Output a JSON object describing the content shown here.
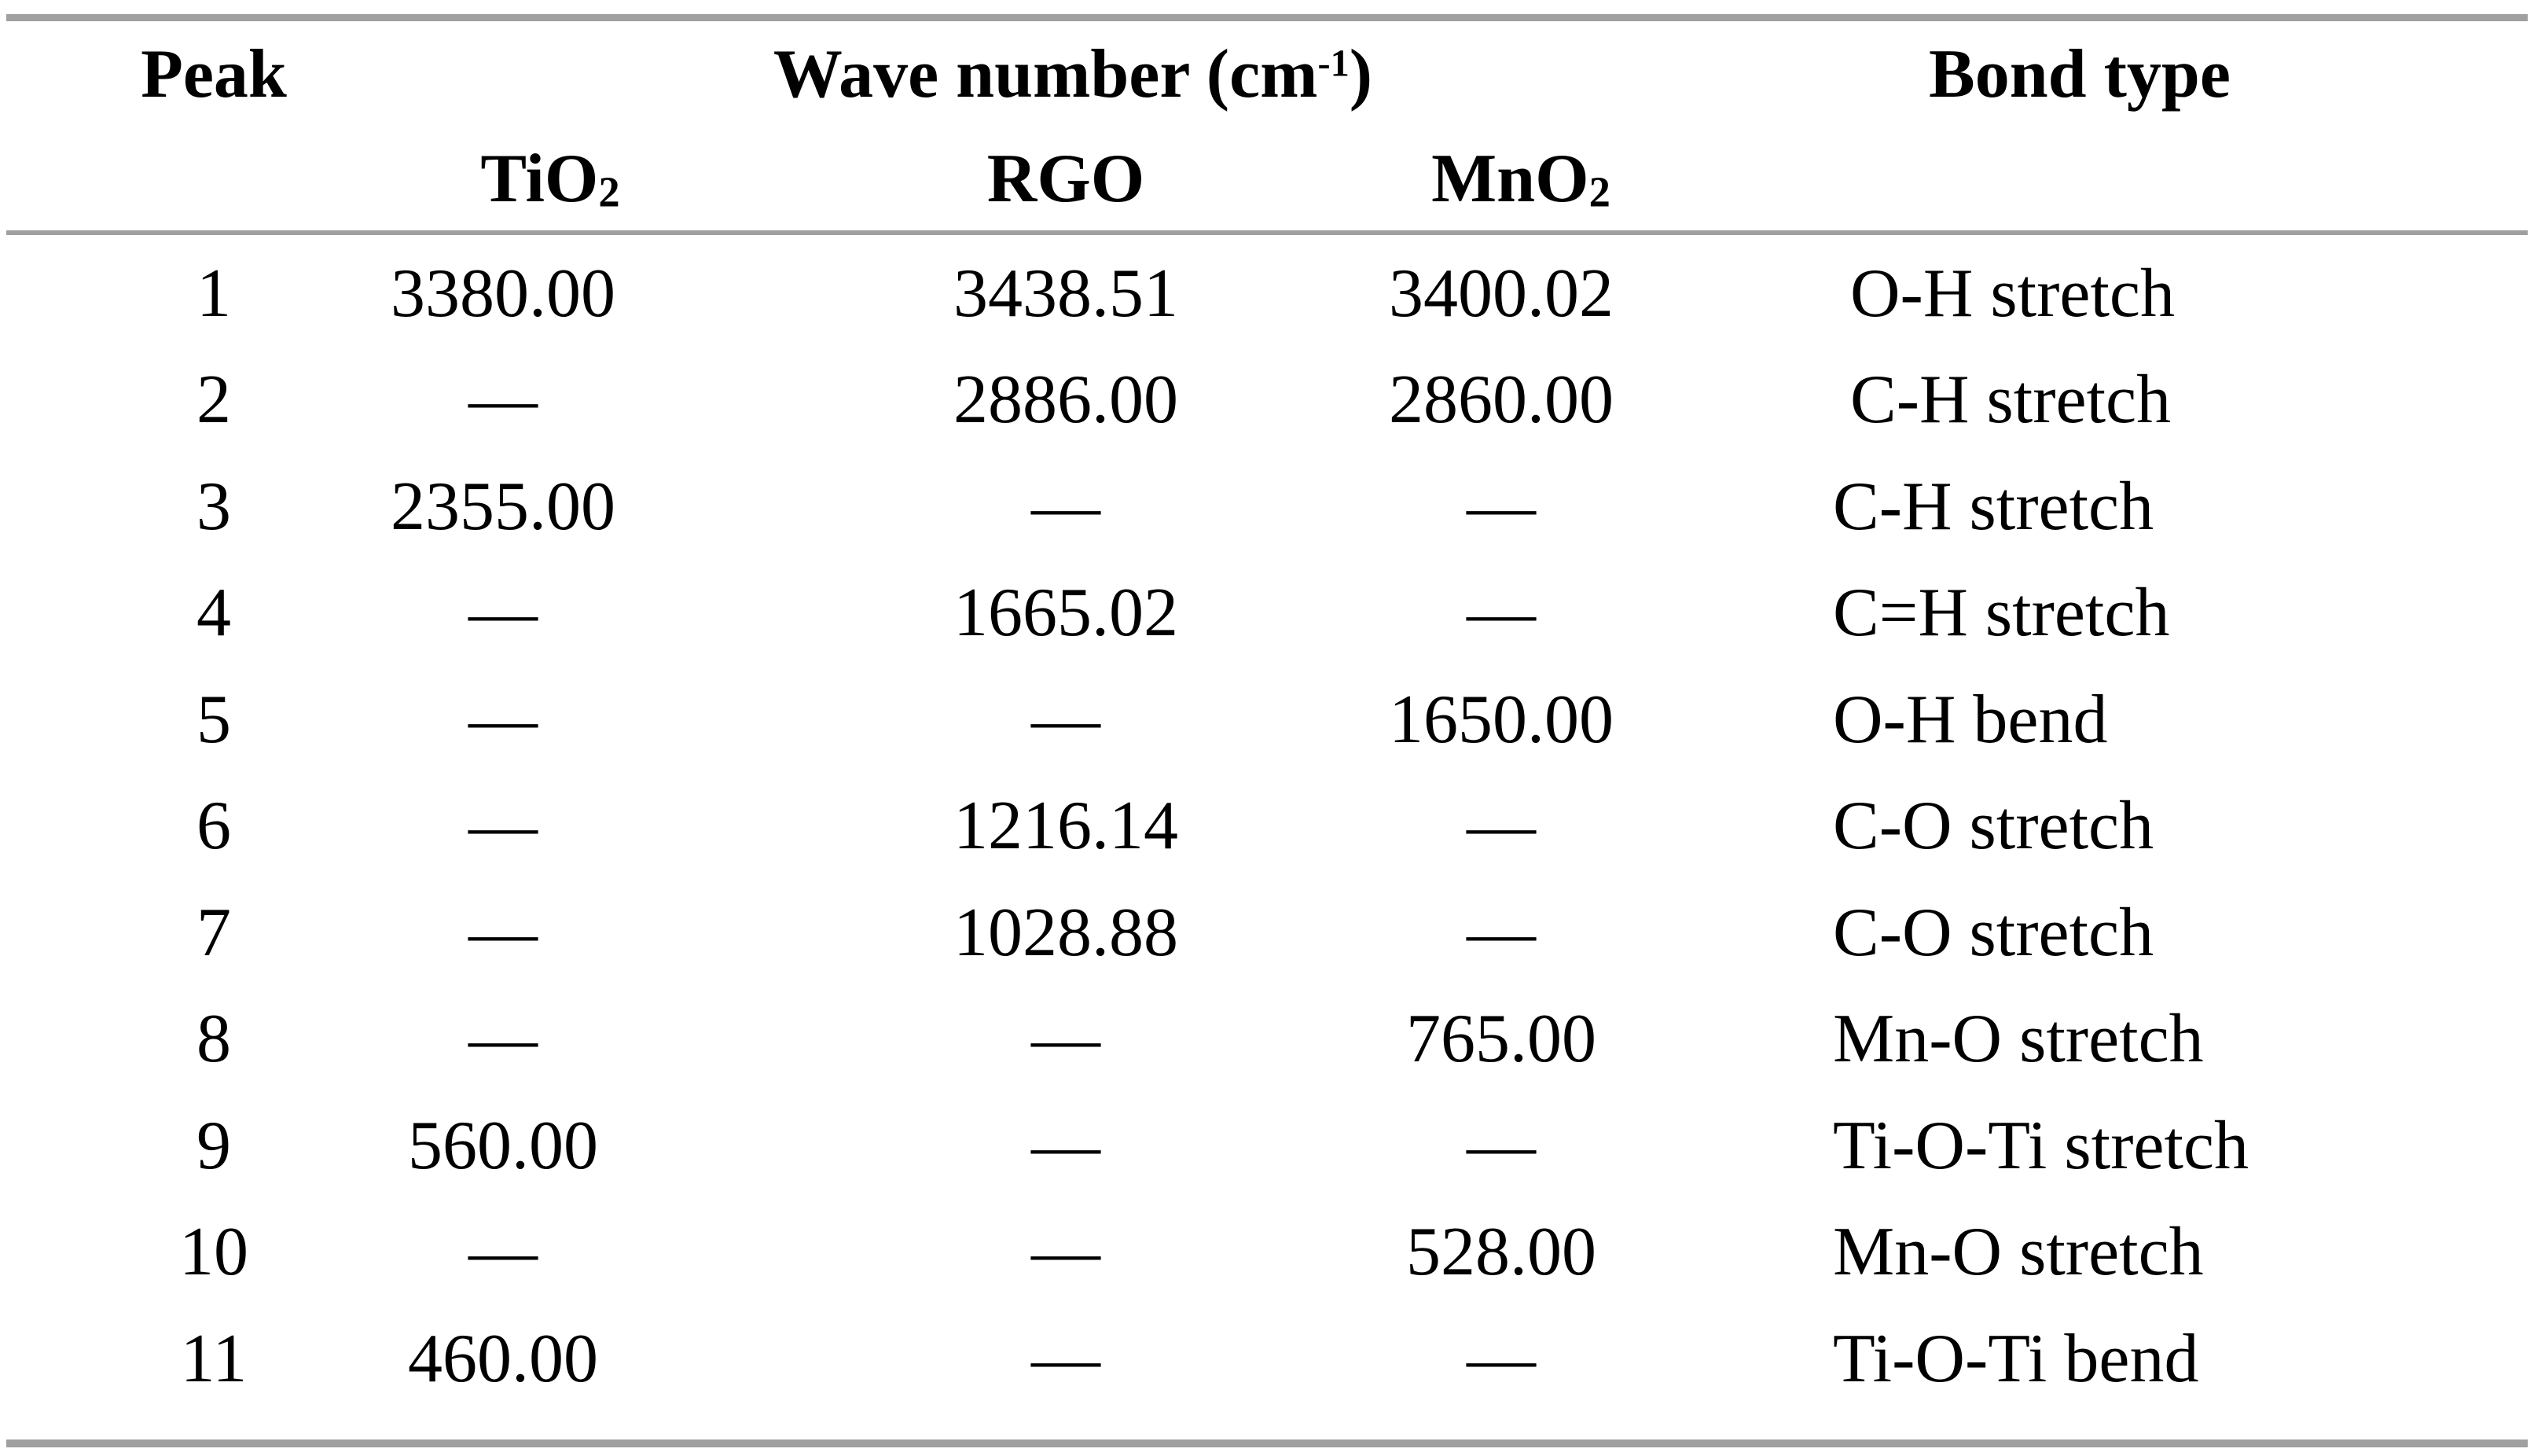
{
  "colors": {
    "background": "#ffffff",
    "text": "#000000",
    "rule": "#a0a0a0"
  },
  "table": {
    "header": {
      "peak": "Peak",
      "wave_number_pre": "Wave number (cm",
      "wave_number_sup": "-1",
      "wave_number_post": ")",
      "bond_type": "Bond type",
      "tio2_base": "TiO",
      "tio2_sub": "2",
      "rgo": "RGO",
      "mno2_base": "MnO",
      "mno2_sub": "2"
    },
    "rows": [
      {
        "peak": "1",
        "tio2": "3380.00",
        "rgo": "3438.51",
        "mno2": "3400.02",
        "bond": " O-H stretch"
      },
      {
        "peak": "2",
        "tio2": "—",
        "rgo": "2886.00",
        "mno2": "2860.00",
        "bond": " C-H stretch"
      },
      {
        "peak": "3",
        "tio2": "2355.00",
        "rgo": "—",
        "mno2": "—",
        "bond": "C-H stretch"
      },
      {
        "peak": "4",
        "tio2": "—",
        "rgo": "1665.02",
        "mno2": "—",
        "bond": "C=H stretch"
      },
      {
        "peak": "5",
        "tio2": "—",
        "rgo": "—",
        "mno2": "1650.00",
        "bond": "O-H bend"
      },
      {
        "peak": "6",
        "tio2": "—",
        "rgo": "1216.14",
        "mno2": "—",
        "bond": "C-O stretch"
      },
      {
        "peak": "7",
        "tio2": "—",
        "rgo": "1028.88",
        "mno2": "—",
        "bond": "C-O stretch"
      },
      {
        "peak": "8",
        "tio2": "—",
        "rgo": "—",
        "mno2": "765.00",
        "bond": "Mn-O stretch"
      },
      {
        "peak": "9",
        "tio2": "560.00",
        "rgo": "—",
        "mno2": "—",
        "bond": "Ti-O-Ti stretch"
      },
      {
        "peak": "10",
        "tio2": "—",
        "rgo": "—",
        "mno2": "528.00",
        "bond": "Mn-O stretch"
      },
      {
        "peak": "11",
        "tio2": "460.00",
        "rgo": "—",
        "mno2": "—",
        "bond": "Ti-O-Ti bend"
      }
    ]
  }
}
